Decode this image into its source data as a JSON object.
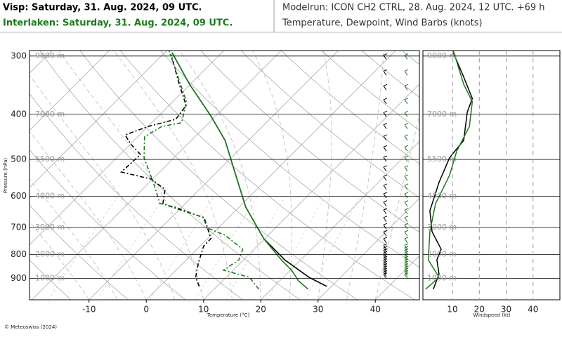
{
  "chart_data": {
    "type": "skewt",
    "header": {
      "station1": "Visp: Saturday, 31. Aug. 2024, 09 UTC.",
      "station2": "Interlaken: Saturday, 31. Aug. 2024, 09 UTC.",
      "modelrun": "Modelrun: ICON CH2 CTRL, 28. Aug. 2024, 12 UTC. +69 h",
      "subtitle": "Temperature, Dewpoint, Wind Barbs (knots)"
    },
    "ylabel": "Pressure (hPa)",
    "xlabel": "Temperature (°C)",
    "log_y": true,
    "ylim": [
      1000,
      292
    ],
    "yticks": [
      300,
      400,
      500,
      600,
      700,
      800,
      900
    ],
    "xlim": [
      -20.4,
      47.7
    ],
    "xticks": [
      -10,
      0,
      10,
      20,
      30,
      40
    ],
    "height_levels": [
      {
        "label": "9000 m",
        "pressure": 300
      },
      {
        "label": "7000 m",
        "pressure": 400
      },
      {
        "label": "5500 m",
        "pressure": 500
      },
      {
        "label": "4000 m",
        "pressure": 600
      },
      {
        "label": "3000 m",
        "pressure": 700
      },
      {
        "label": "2000 m",
        "pressure": 800
      },
      {
        "label": "1000 m",
        "pressure": 900
      }
    ],
    "series": [
      {
        "color": "#000000",
        "dash": false,
        "pressure": [
          936,
          895,
          821,
          739,
          633,
          541,
          455,
          403,
          345,
          295
        ],
        "values": [
          29.2,
          24.5,
          17.2,
          9.8,
          1.2,
          -6.1,
          -14.1,
          -20.9,
          -30.1,
          -38.7
        ]
      },
      {
        "color": "#1a7a1a",
        "dash": false,
        "pressure": [
          949,
          911,
          864,
          821,
          739,
          633,
          541,
          455,
          403,
          345,
          295
        ],
        "values": [
          26.4,
          23.3,
          20.2,
          16.6,
          9.8,
          1.2,
          -6.1,
          -14.1,
          -20.9,
          -30.1,
          -38.7
        ]
      },
      {
        "color": "#000000",
        "dash": true,
        "pressure": [
          936,
          895,
          835,
          766,
          739,
          666,
          644,
          622,
          580,
          551,
          532,
          488,
          463,
          443,
          425,
          410,
          383,
          345,
          298
        ],
        "values": [
          6.9,
          4.7,
          2.7,
          0.6,
          0.6,
          -4.3,
          -9.2,
          -13.9,
          -16,
          -20.2,
          -26.7,
          -26.4,
          -30,
          -32.5,
          -30,
          -26.4,
          -27,
          -31.9,
          -38.5
        ]
      },
      {
        "color": "#1a7a1a",
        "dash": true,
        "pressure": [
          949,
          895,
          864,
          821,
          779,
          727,
          702,
          666,
          633,
          622,
          560,
          496,
          447,
          425,
          417,
          376,
          339,
          292
        ],
        "values": [
          17.8,
          14.1,
          8.3,
          9.2,
          8.0,
          2.5,
          -1.8,
          -4.5,
          -11,
          -14.4,
          -19.3,
          -25.2,
          -28.8,
          -27.6,
          -24.8,
          -27.6,
          -32.5,
          -39.6
        ]
      }
    ],
    "wind": {
      "xlabel": "Windspeed (kt)",
      "xlim": [
        -1,
        50
      ],
      "xticks": [
        10,
        20,
        30,
        40
      ],
      "series": [
        {
          "color": "#000000",
          "pressure": [
            949,
            880,
            821,
            779,
            714,
            644,
            560,
            496,
            455,
            396,
            370,
            333,
            295
          ],
          "values": [
            2.9,
            5,
            4.2,
            5.8,
            2.4,
            1.6,
            5,
            8.9,
            14.2,
            15.5,
            17.4,
            14.2,
            10.3
          ]
        },
        {
          "color": "#1a7a1a",
          "pressure": [
            949,
            895,
            821,
            714,
            622,
            541,
            480,
            425,
            376,
            345,
            292
          ],
          "values": [
            0,
            5,
            1,
            1.6,
            3.7,
            8.9,
            11.6,
            16.3,
            17.4,
            14.2,
            10.3
          ]
        }
      ]
    },
    "footer": "© Meteoswiss (2024)"
  }
}
